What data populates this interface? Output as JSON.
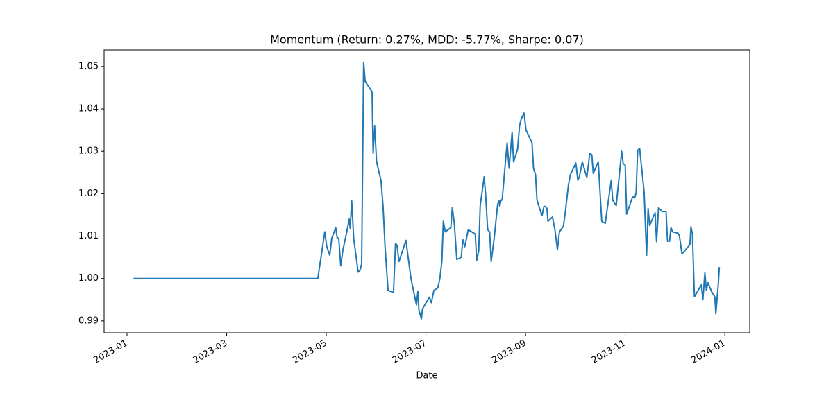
{
  "chart_data": {
    "type": "line",
    "title": "Momentum (Return: 0.27%, MDD: -5.77%, Sharpe: 0.07)",
    "xlabel": "Date",
    "color": "#1f77b4",
    "xlim": [
      -0.46,
      12.5
    ],
    "xticks": [
      {
        "value": 0,
        "label": "2023-01"
      },
      {
        "value": 2,
        "label": "2023-03"
      },
      {
        "value": 4,
        "label": "2023-05"
      },
      {
        "value": 6,
        "label": "2023-07"
      },
      {
        "value": 8,
        "label": "2023-09"
      },
      {
        "value": 10,
        "label": "2023-11"
      },
      {
        "value": 12,
        "label": "2024-01"
      }
    ],
    "ylim": [
      0.9872,
      1.0539
    ],
    "yticks": [
      0.99,
      {
        "value": 1,
        "label": "1.00"
      },
      1.01,
      1.02,
      1.03,
      1.04,
      1.05
    ],
    "x": [
      0.13,
      3.83,
      3.97,
      4.01,
      4.07,
      4.11,
      4.19,
      4.22,
      4.25,
      4.29,
      4.33,
      4.42,
      4.46,
      4.48,
      4.51,
      4.55,
      4.64,
      4.68,
      4.71,
      4.75,
      4.78,
      4.92,
      4.94,
      4.97,
      5.01,
      5.1,
      5.14,
      5.18,
      5.24,
      5.35,
      5.39,
      5.42,
      5.46,
      5.6,
      5.63,
      5.7,
      5.81,
      5.84,
      5.86,
      5.91,
      5.93,
      6.0,
      6.07,
      6.11,
      6.16,
      6.24,
      6.28,
      6.32,
      6.35,
      6.39,
      6.5,
      6.53,
      6.57,
      6.62,
      6.71,
      6.74,
      6.78,
      6.85,
      6.99,
      7.02,
      7.06,
      7.09,
      7.17,
      7.2,
      7.24,
      7.28,
      7.31,
      7.37,
      7.44,
      7.47,
      7.48,
      7.51,
      7.53,
      7.63,
      7.67,
      7.73,
      7.76,
      7.84,
      7.88,
      7.91,
      7.97,
      8.01,
      8.13,
      8.16,
      8.2,
      8.23,
      8.33,
      8.37,
      8.4,
      8.43,
      8.45,
      8.54,
      8.59,
      8.64,
      8.68,
      8.76,
      8.8,
      8.86,
      8.9,
      9.01,
      9.05,
      9.08,
      9.14,
      9.23,
      9.29,
      9.33,
      9.36,
      9.46,
      9.53,
      9.6,
      9.72,
      9.75,
      9.82,
      9.93,
      9.96,
      10.0,
      10.03,
      10.15,
      10.19,
      10.22,
      10.25,
      10.29,
      10.38,
      10.43,
      10.46,
      10.49,
      10.6,
      10.63,
      10.67,
      10.74,
      10.82,
      10.85,
      10.89,
      10.92,
      10.95,
      11.06,
      11.09,
      11.14,
      11.3,
      11.32,
      11.35,
      11.39,
      11.53,
      11.56,
      11.6,
      11.63,
      11.66,
      11.74,
      11.8,
      11.82,
      11.87,
      11.89
    ],
    "values": [
      1.0,
      1.0,
      1.011,
      1.0075,
      1.0055,
      1.0095,
      1.012,
      1.0095,
      1.0095,
      1.003,
      1.0065,
      1.0115,
      1.014,
      1.0118,
      1.0183,
      1.0095,
      1.0015,
      1.002,
      1.0035,
      1.051,
      1.0465,
      1.044,
      1.0295,
      1.036,
      1.0275,
      1.023,
      1.017,
      1.0075,
      0.9972,
      0.9967,
      1.0083,
      1.0078,
      1.004,
      1.009,
      1.0062,
      1.0,
      0.9938,
      0.997,
      0.9925,
      0.9905,
      0.9928,
      0.9942,
      0.9956,
      0.9943,
      0.9972,
      0.9978,
      1.0,
      1.004,
      1.0135,
      1.011,
      1.012,
      1.0167,
      1.013,
      1.0045,
      1.005,
      1.0092,
      1.0075,
      1.0115,
      1.0105,
      1.0043,
      1.0065,
      1.0172,
      1.024,
      1.0195,
      1.0115,
      1.011,
      1.004,
      1.0095,
      1.0175,
      1.0183,
      1.017,
      1.0185,
      1.0185,
      1.032,
      1.026,
      1.0345,
      1.0275,
      1.0305,
      1.036,
      1.0375,
      1.039,
      1.035,
      1.032,
      1.026,
      1.0245,
      1.0185,
      1.0148,
      1.017,
      1.017,
      1.0165,
      1.0135,
      1.0145,
      1.0115,
      1.0068,
      1.011,
      1.0123,
      1.0158,
      1.022,
      1.0245,
      1.0272,
      1.0232,
      1.024,
      1.0275,
      1.0238,
      1.0295,
      1.0292,
      1.0248,
      1.0275,
      1.0135,
      1.013,
      1.0232,
      1.0185,
      1.0172,
      1.03,
      1.027,
      1.0268,
      1.0152,
      1.0193,
      1.019,
      1.0202,
      1.0302,
      1.0307,
      1.0205,
      1.0055,
      1.0165,
      1.0125,
      1.0155,
      1.0087,
      1.0167,
      1.0158,
      1.0158,
      1.0088,
      1.0088,
      1.012,
      1.011,
      1.0107,
      1.01,
      1.0058,
      1.008,
      1.0122,
      1.0105,
      0.9957,
      0.9985,
      0.995,
      1.0013,
      0.9972,
      0.999,
      0.9968,
      0.9957,
      0.9917,
      0.9988,
      1.0027
    ]
  }
}
